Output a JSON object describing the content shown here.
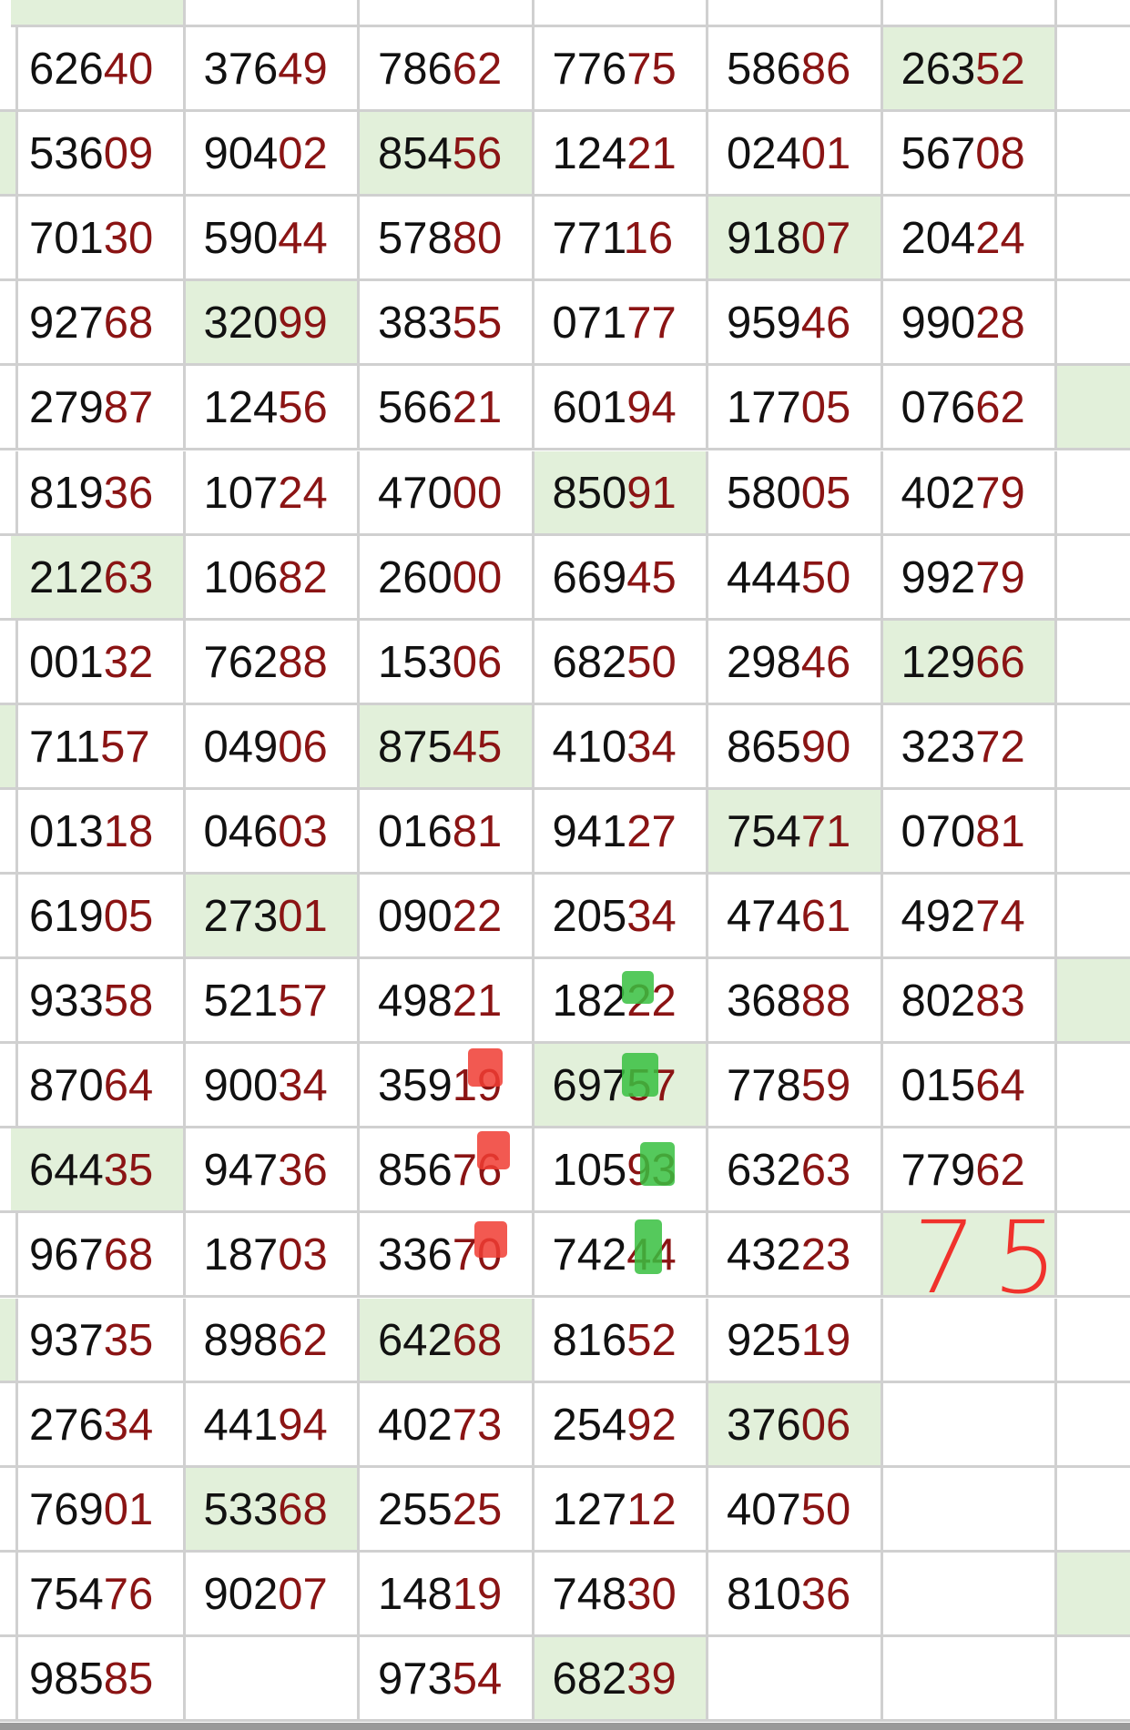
{
  "table": {
    "rows": [
      [
        {
          "text": "62640"
        },
        {
          "text": "37649"
        },
        {
          "text": "78662"
        },
        {
          "text": "77675"
        },
        {
          "text": "58686"
        },
        {
          "text": "26352",
          "green": true
        }
      ],
      [
        {
          "text": "53609"
        },
        {
          "text": "90402"
        },
        {
          "text": "85456",
          "green": true
        },
        {
          "text": "12421"
        },
        {
          "text": "02401"
        },
        {
          "text": "56708"
        }
      ],
      [
        {
          "text": "70130"
        },
        {
          "text": "59044"
        },
        {
          "text": "57880"
        },
        {
          "text": "77116"
        },
        {
          "text": "91807",
          "green": true
        },
        {
          "text": "20424"
        }
      ],
      [
        {
          "text": "92768"
        },
        {
          "text": "32099",
          "green": true
        },
        {
          "text": "38355"
        },
        {
          "text": "07177"
        },
        {
          "text": "95946"
        },
        {
          "text": "99028"
        }
      ],
      [
        {
          "text": "27987"
        },
        {
          "text": "12456"
        },
        {
          "text": "56621"
        },
        {
          "text": "60194"
        },
        {
          "text": "17705"
        },
        {
          "text": "07662"
        }
      ],
      [
        {
          "text": "81936"
        },
        {
          "text": "10724"
        },
        {
          "text": "47000"
        },
        {
          "text": "85091",
          "green": true
        },
        {
          "text": "58005"
        },
        {
          "text": "40279"
        }
      ],
      [
        {
          "text": "21263",
          "green": true
        },
        {
          "text": "10682"
        },
        {
          "text": "26000"
        },
        {
          "text": "66945"
        },
        {
          "text": "44450"
        },
        {
          "text": "99279"
        }
      ],
      [
        {
          "text": "00132"
        },
        {
          "text": "76288"
        },
        {
          "text": "15306"
        },
        {
          "text": "68250"
        },
        {
          "text": "29846"
        },
        {
          "text": "12966",
          "green": true
        }
      ],
      [
        {
          "text": "71157"
        },
        {
          "text": "04906"
        },
        {
          "text": "87545",
          "green": true
        },
        {
          "text": "41034"
        },
        {
          "text": "86590"
        },
        {
          "text": "32372"
        }
      ],
      [
        {
          "text": "01318"
        },
        {
          "text": "04603"
        },
        {
          "text": "01681"
        },
        {
          "text": "94127"
        },
        {
          "text": "75471",
          "green": true
        },
        {
          "text": "07081"
        }
      ],
      [
        {
          "text": "61905"
        },
        {
          "text": "27301",
          "green": true
        },
        {
          "text": "09022"
        },
        {
          "text": "20534"
        },
        {
          "text": "47461"
        },
        {
          "text": "49274"
        }
      ],
      [
        {
          "text": "93358"
        },
        {
          "text": "52157"
        },
        {
          "text": "49821"
        },
        {
          "text": "18222"
        },
        {
          "text": "36888"
        },
        {
          "text": "80283"
        }
      ],
      [
        {
          "text": "87064"
        },
        {
          "text": "90034"
        },
        {
          "text": "35919"
        },
        {
          "text": "69757",
          "green": true
        },
        {
          "text": "77859"
        },
        {
          "text": "01564"
        }
      ],
      [
        {
          "text": "64435",
          "green": true
        },
        {
          "text": "94736"
        },
        {
          "text": "85676"
        },
        {
          "text": "10593"
        },
        {
          "text": "63263"
        },
        {
          "text": "77962"
        }
      ],
      [
        {
          "text": "96768"
        },
        {
          "text": "18703"
        },
        {
          "text": "33670"
        },
        {
          "text": "74244"
        },
        {
          "text": "43223"
        },
        {
          "green": true
        }
      ],
      [
        {
          "text": "93735"
        },
        {
          "text": "89862"
        },
        {
          "text": "64268",
          "green": true
        },
        {
          "text": "81652"
        },
        {
          "text": "92519"
        },
        {}
      ],
      [
        {
          "text": "27634"
        },
        {
          "text": "44194"
        },
        {
          "text": "40273"
        },
        {
          "text": "25492"
        },
        {
          "text": "37606",
          "green": true
        },
        {}
      ],
      [
        {
          "text": "76901"
        },
        {
          "text": "53368",
          "green": true
        },
        {
          "text": "25525"
        },
        {
          "text": "12712"
        },
        {
          "text": "40750"
        },
        {}
      ],
      [
        {
          "text": "75476"
        },
        {
          "text": "90207"
        },
        {
          "text": "14819"
        },
        {
          "text": "74830"
        },
        {
          "text": "81036"
        },
        {}
      ],
      [
        {
          "text": "98585"
        },
        {},
        {
          "text": "97354"
        },
        {
          "text": "68239",
          "green": true
        },
        {},
        {}
      ]
    ]
  },
  "annotation": "75"
}
